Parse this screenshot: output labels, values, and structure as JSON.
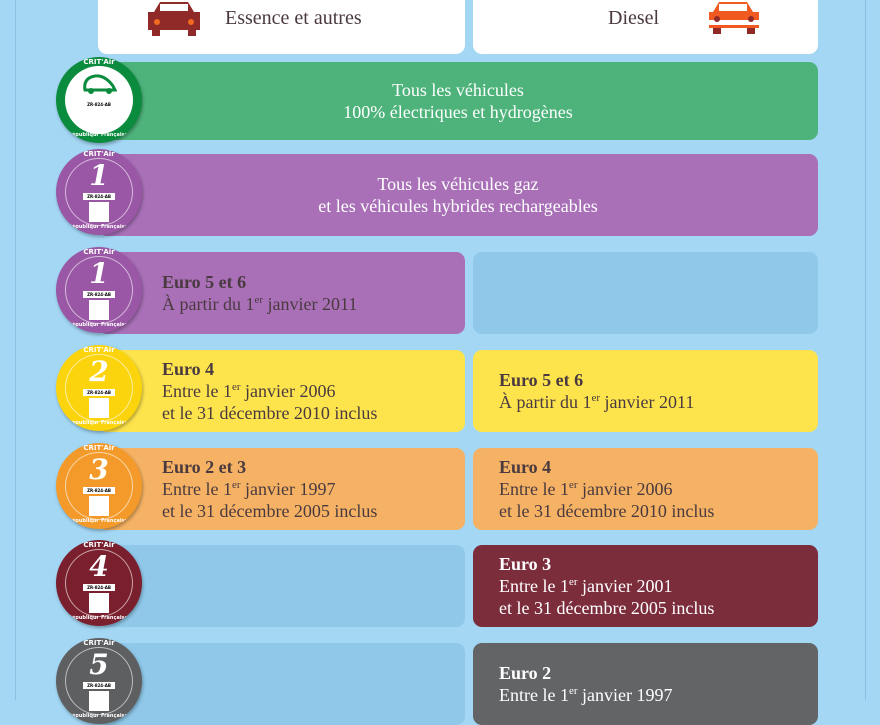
{
  "header": {
    "essence": "Essence et autres",
    "diesel": "Diesel"
  },
  "badge": {
    "title": "CRIT'Air",
    "plate": "ZR-824-AB",
    "left": "République",
    "right": "Française"
  },
  "rows": [
    {
      "level": "0",
      "badge_color": "#0b8b3d",
      "card_color": "#4db37b",
      "full": [
        "Tous les véhicules",
        "100% électriques et hydrogènes"
      ]
    },
    {
      "level": "1",
      "badge_color": "#9a57a5",
      "card_color": "#a970b8",
      "full": [
        "Tous les véhicules gaz",
        "et les véhicules hybrides rechargeables"
      ]
    },
    {
      "level": "1",
      "badge_color": "#9a57a5",
      "card_color": "#a970b8",
      "essence": {
        "title": "Euro 5 et 6",
        "l1a": "À partir du 1",
        "sup": "er",
        "l1b": " janvier 2011"
      }
    },
    {
      "level": "2",
      "badge_color": "#fbd40e",
      "card_color": "#fde44d",
      "essence": {
        "title": "Euro 4",
        "l1a": "Entre le 1",
        "sup": "er",
        "l1b": " janvier 2006",
        "l2": "et le 31 décembre 2010 inclus"
      },
      "diesel": {
        "title": "Euro 5 et 6",
        "l1a": "À partir du 1",
        "sup": "er",
        "l1b": " janvier 2011"
      }
    },
    {
      "level": "3",
      "badge_color": "#f39a2a",
      "card_color": "#f5b264",
      "essence": {
        "title": "Euro 2 et 3",
        "l1a": "Entre le 1",
        "sup": "er",
        "l1b": " janvier 1997",
        "l2": "et le 31 décembre 2005 inclus"
      },
      "diesel": {
        "title": "Euro 4",
        "l1a": "Entre le 1",
        "sup": "er",
        "l1b": " janvier 2006",
        "l2": "et le 31 décembre 2010 inclus"
      }
    },
    {
      "level": "4",
      "badge_color": "#7a1f2e",
      "card_color": "#7b2d3c",
      "diesel": {
        "title": "Euro 3",
        "l1a": "Entre le 1",
        "sup": "er",
        "l1b": " janvier 2001",
        "l2": "et le 31 décembre 2005 inclus"
      }
    },
    {
      "level": "5",
      "badge_color": "#5e5f61",
      "card_color": "#636466",
      "diesel": {
        "title": "Euro 2",
        "l1a": "Entre le 1",
        "sup": "er",
        "l1b": " janvier 1997"
      }
    }
  ]
}
